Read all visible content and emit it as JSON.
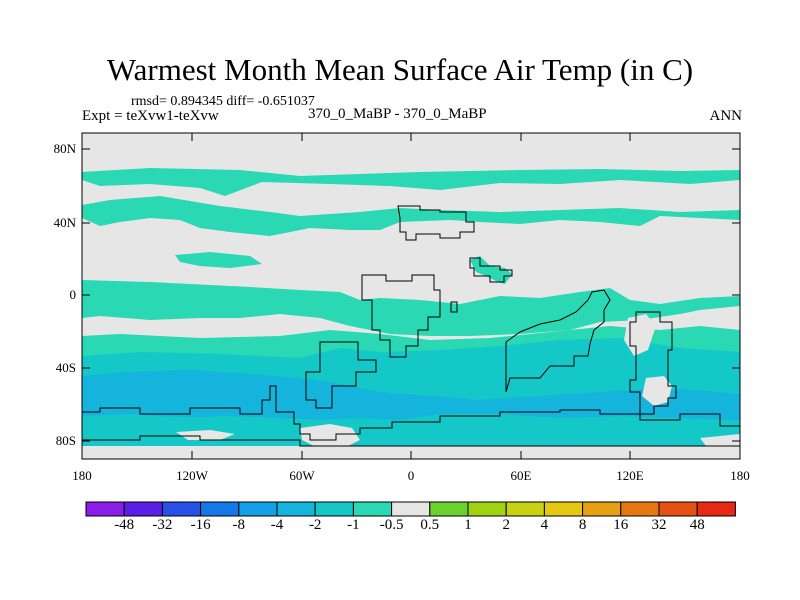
{
  "title": "Warmest Month Mean Surface Air Temp (in C)",
  "stats": "rmsd= 0.894345  diff= -0.651037",
  "experiment": "Expt = teXvw1-teXvw",
  "period": "370_0_MaBP - 370_0_MaBP",
  "season": "ANN",
  "lat_ticks": [
    "80N",
    "40N",
    "0",
    "40S",
    "80S"
  ],
  "lon_ticks": [
    "180",
    "120W",
    "60W",
    "0",
    "60E",
    "120E",
    "180"
  ],
  "colorbar": {
    "labels": [
      "-48",
      "-32",
      "-16",
      "-8",
      "-4",
      "-2",
      "-1",
      "-0.5",
      "0.5",
      "1",
      "2",
      "4",
      "8",
      "16",
      "32",
      "48"
    ],
    "colors": [
      "#8a1ee6",
      "#5a1ee6",
      "#2850e6",
      "#1478e6",
      "#14a0e6",
      "#14b4dc",
      "#14c8c8",
      "#2ad8b4",
      "#e6e6e6",
      "#6ad22a",
      "#a0d214",
      "#c8d214",
      "#e6c814",
      "#e6a014",
      "#e67814",
      "#e65014",
      "#e62814"
    ]
  },
  "colors": {
    "neutral": "#e6e6e6",
    "band_light": "#2ad8b4",
    "band_mid": "#14c8c8",
    "band_deep": "#14b4dc"
  }
}
